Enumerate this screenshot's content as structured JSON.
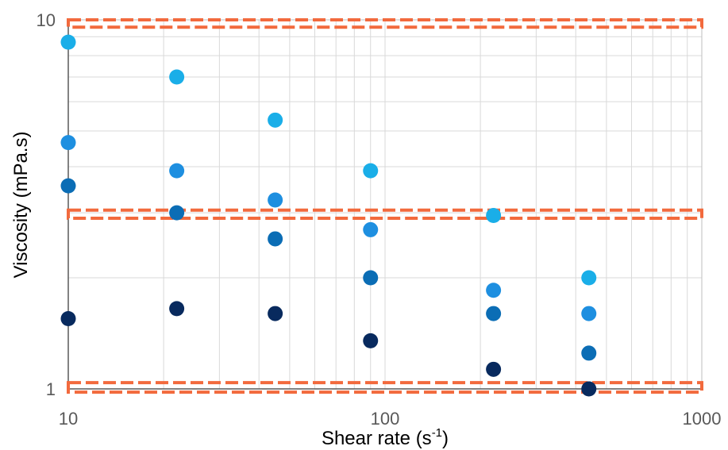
{
  "chart_data": {
    "type": "scatter",
    "title": "",
    "xlabel": "Shear rate (s",
    "xlabel_sup": "-1",
    "xlabel_close": ")",
    "ylabel": "Viscosity (mPa.s)",
    "x_scale": "log",
    "y_scale": "log",
    "xlim": [
      10,
      1000
    ],
    "ylim": [
      1,
      10
    ],
    "x_tick_labels": [
      "10",
      "100",
      "1000"
    ],
    "y_tick_labels": [
      "10",
      "1"
    ],
    "grid": true,
    "legend": "none",
    "series": [
      {
        "color": "#1aaee8",
        "x": [
          10,
          22,
          45,
          90,
          220,
          440
        ],
        "y": [
          8.7,
          7.0,
          5.35,
          3.9,
          2.95,
          2.0
        ]
      },
      {
        "color": "#1e8fe0",
        "x": [
          10,
          22,
          45,
          90,
          220,
          440
        ],
        "y": [
          4.65,
          3.9,
          3.25,
          2.7,
          1.85,
          1.6
        ]
      },
      {
        "color": "#0b6db5",
        "x": [
          10,
          22,
          45,
          90,
          220,
          440
        ],
        "y": [
          3.55,
          3.0,
          2.55,
          2.0,
          1.6,
          1.25
        ]
      },
      {
        "color": "#082a5e",
        "x": [
          10,
          22,
          45,
          90,
          220,
          440
        ],
        "y": [
          1.55,
          1.65,
          1.6,
          1.35,
          1.13,
          1.0
        ]
      }
    ],
    "highlight_boxes": [
      {
        "color": "#f26a3d",
        "y_range": [
          9.55,
          10.0
        ]
      },
      {
        "color": "#f26a3d",
        "y_range": [
          2.9,
          3.05
        ]
      },
      {
        "color": "#f26a3d",
        "y_range": [
          0.98,
          1.04
        ]
      }
    ]
  }
}
